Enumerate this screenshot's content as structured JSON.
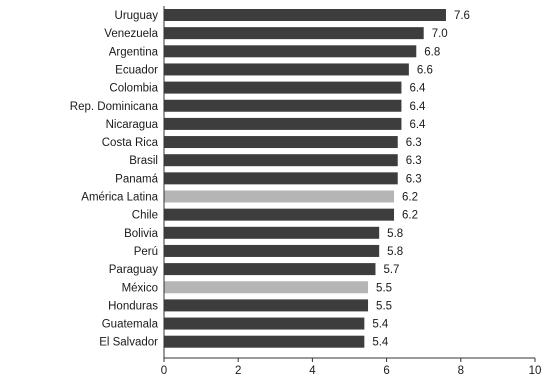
{
  "chart_data": {
    "type": "bar",
    "orientation": "horizontal",
    "categories": [
      "Uruguay",
      "Venezuela",
      "Argentina",
      "Ecuador",
      "Colombia",
      "Rep. Dominicana",
      "Nicaragua",
      "Costa Rica",
      "Brasil",
      "Panamá",
      "América Latina",
      "Chile",
      "Bolivia",
      "Perú",
      "Paraguay",
      "México",
      "Honduras",
      "Guatemala",
      "El Salvador"
    ],
    "value_labels": [
      "7.6",
      "7.0",
      "6.8",
      "6.6",
      "6.4",
      "6.4",
      "6.4",
      "6.3",
      "6.3",
      "6.3",
      "6.2",
      "6.2",
      "5.8",
      "5.8",
      "5.7",
      "5.5",
      "5.5",
      "5.4",
      "5.4"
    ],
    "values": [
      7.6,
      7.0,
      6.8,
      6.6,
      6.4,
      6.4,
      6.4,
      6.3,
      6.3,
      6.3,
      6.2,
      6.2,
      5.8,
      5.8,
      5.7,
      5.5,
      5.5,
      5.4,
      5.4
    ],
    "highlighted_categories": [
      "América Latina",
      "México"
    ],
    "xlim": [
      0,
      10
    ],
    "xticks": [
      "0",
      "2",
      "4",
      "6",
      "8",
      "10"
    ],
    "title": "",
    "xlabel": "",
    "ylabel": "",
    "grid": false,
    "colors": {
      "bar": "#3d3d3d",
      "highlight": "#b5b5b5",
      "axis": "#333333",
      "text": "#1a1a1a"
    }
  }
}
